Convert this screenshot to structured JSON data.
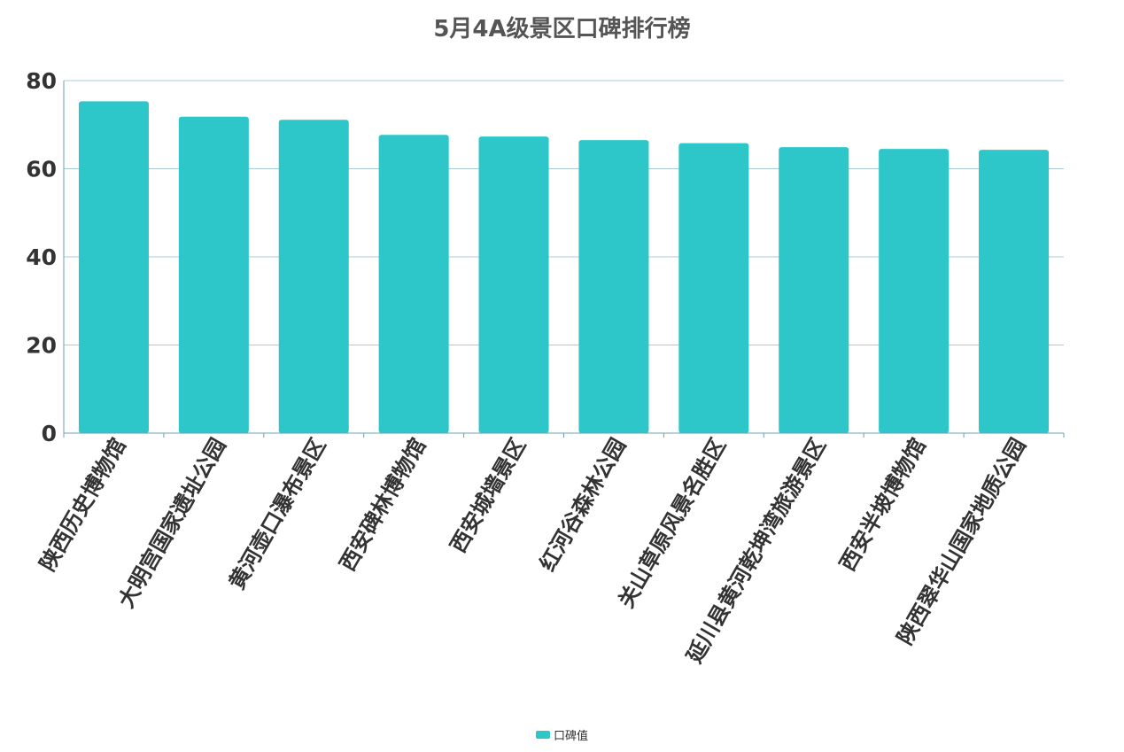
{
  "chart_data": {
    "type": "bar",
    "title": "5月4A级景区口碑排行榜",
    "categories": [
      "陕西历史博物馆",
      "大明宫国家遗址公园",
      "黄河壶口瀑布景区",
      "西安碑林博物馆",
      "西安城墙景区",
      "红河谷森林公园",
      "关山草原风景名胜区",
      "延川县黄河乾坤湾旅游景区",
      "西安半坡博物馆",
      "陕西翠华山国家地质公园"
    ],
    "series": [
      {
        "name": "口碑值",
        "values": [
          75.3,
          71.8,
          71.1,
          67.7,
          67.3,
          66.5,
          65.8,
          64.9,
          64.5,
          64.3
        ]
      }
    ],
    "ylim": [
      0,
      80
    ],
    "yticks": [
      0,
      20,
      40,
      60,
      80
    ],
    "grid": true,
    "legend": "bottom-center",
    "bar_color": "#2ec7c9",
    "grid_color": "#a8cdd9",
    "axis_color": "#6e9fb1"
  }
}
